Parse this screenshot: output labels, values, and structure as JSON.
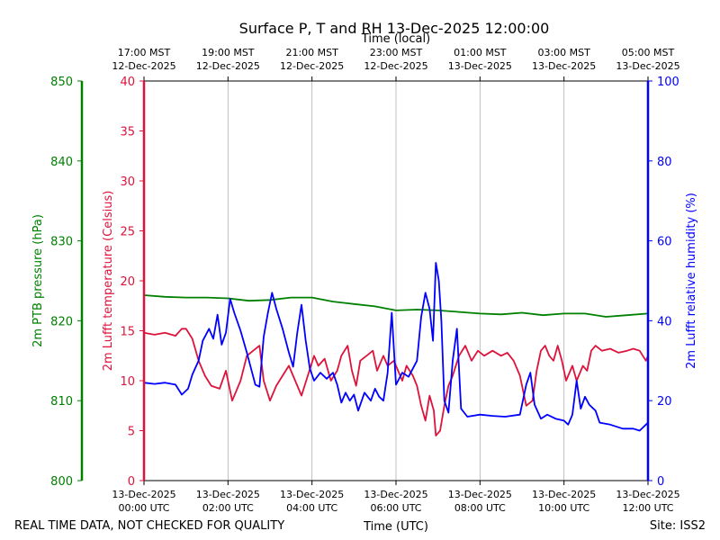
{
  "chart_data": {
    "type": "line",
    "title": "Surface P, T and RH 13-Dec-2025 12:00:00",
    "top_xlabel": "Time (local)",
    "bottom_xlabel": "Time (UTC)",
    "footer_left": "REAL TIME DATA, NOT CHECKED FOR QUALITY",
    "footer_right": "Site: ISS2",
    "x_unit": "hours since 13-Dec-2025 00:00 UTC",
    "xlim": [
      0,
      12
    ],
    "bottom_ticks": [
      {
        "x": 0,
        "line1": "13-Dec-2025",
        "line2": "00:00 UTC"
      },
      {
        "x": 2,
        "line1": "13-Dec-2025",
        "line2": "02:00 UTC"
      },
      {
        "x": 4,
        "line1": "13-Dec-2025",
        "line2": "04:00 UTC"
      },
      {
        "x": 6,
        "line1": "13-Dec-2025",
        "line2": "06:00 UTC"
      },
      {
        "x": 8,
        "line1": "13-Dec-2025",
        "line2": "08:00 UTC"
      },
      {
        "x": 10,
        "line1": "13-Dec-2025",
        "line2": "10:00 UTC"
      },
      {
        "x": 12,
        "line1": "13-Dec-2025",
        "line2": "12:00 UTC"
      }
    ],
    "top_ticks": [
      {
        "x": 0,
        "line1": "17:00 MST",
        "line2": "12-Dec-2025"
      },
      {
        "x": 2,
        "line1": "19:00 MST",
        "line2": "12-Dec-2025"
      },
      {
        "x": 4,
        "line1": "21:00 MST",
        "line2": "12-Dec-2025"
      },
      {
        "x": 6,
        "line1": "23:00 MST",
        "line2": "12-Dec-2025"
      },
      {
        "x": 8,
        "line1": "01:00 MST",
        "line2": "13-Dec-2025"
      },
      {
        "x": 10,
        "line1": "03:00 MST",
        "line2": "13-Dec-2025"
      },
      {
        "x": 12,
        "line1": "05:00 MST",
        "line2": "13-Dec-2025"
      }
    ],
    "grid_vertical": true,
    "axes": {
      "pressure": {
        "label": "2m PTB pressure (hPa)",
        "color": "#008000",
        "ylim": [
          800,
          850
        ],
        "ticks": [
          800,
          810,
          820,
          830,
          840,
          850
        ]
      },
      "temperature": {
        "label": "2m Lufft temperature (Celsius)",
        "color": "#dc143c",
        "ylim": [
          0,
          40
        ],
        "ticks": [
          0,
          5,
          10,
          15,
          20,
          25,
          30,
          35,
          40
        ]
      },
      "humidity": {
        "label": "2m Lufft relative humidity (%)",
        "color": "#0000ff",
        "ylim": [
          0,
          100
        ],
        "ticks": [
          0,
          20,
          40,
          60,
          80,
          100
        ]
      }
    },
    "series": [
      {
        "key": "pressure",
        "color": "#008000",
        "points": [
          [
            0,
            823.2
          ],
          [
            0.5,
            823.0
          ],
          [
            1,
            822.9
          ],
          [
            1.5,
            822.9
          ],
          [
            2,
            822.8
          ],
          [
            2.5,
            822.5
          ],
          [
            3,
            822.6
          ],
          [
            3.5,
            822.9
          ],
          [
            4,
            822.9
          ],
          [
            4.5,
            822.4
          ],
          [
            5,
            822.1
          ],
          [
            5.5,
            821.8
          ],
          [
            6,
            821.3
          ],
          [
            6.5,
            821.4
          ],
          [
            7,
            821.3
          ],
          [
            7.5,
            821.1
          ],
          [
            8,
            820.9
          ],
          [
            8.5,
            820.8
          ],
          [
            9,
            821.0
          ],
          [
            9.5,
            820.7
          ],
          [
            10,
            820.9
          ],
          [
            10.5,
            820.9
          ],
          [
            11,
            820.5
          ],
          [
            11.5,
            820.7
          ],
          [
            12,
            820.9
          ]
        ]
      },
      {
        "key": "temperature",
        "color": "#dc143c",
        "points": [
          [
            0,
            14.8
          ],
          [
            0.25,
            14.6
          ],
          [
            0.5,
            14.8
          ],
          [
            0.75,
            14.5
          ],
          [
            0.9,
            15.2
          ],
          [
            1.0,
            15.2
          ],
          [
            1.15,
            14.2
          ],
          [
            1.3,
            12.0
          ],
          [
            1.45,
            10.5
          ],
          [
            1.6,
            9.5
          ],
          [
            1.8,
            9.2
          ],
          [
            1.95,
            11.0
          ],
          [
            2.1,
            8.0
          ],
          [
            2.3,
            10.0
          ],
          [
            2.45,
            12.5
          ],
          [
            2.6,
            13.0
          ],
          [
            2.75,
            13.5
          ],
          [
            2.85,
            10.0
          ],
          [
            3.0,
            8.0
          ],
          [
            3.15,
            9.5
          ],
          [
            3.3,
            10.5
          ],
          [
            3.45,
            11.5
          ],
          [
            3.6,
            10.0
          ],
          [
            3.75,
            8.5
          ],
          [
            3.9,
            10.5
          ],
          [
            4.05,
            12.5
          ],
          [
            4.15,
            11.5
          ],
          [
            4.3,
            12.2
          ],
          [
            4.45,
            10.0
          ],
          [
            4.6,
            11.0
          ],
          [
            4.7,
            12.5
          ],
          [
            4.85,
            13.5
          ],
          [
            4.95,
            11.0
          ],
          [
            5.05,
            9.5
          ],
          [
            5.15,
            12.0
          ],
          [
            5.3,
            12.5
          ],
          [
            5.45,
            13.0
          ],
          [
            5.55,
            11.0
          ],
          [
            5.7,
            12.5
          ],
          [
            5.8,
            11.5
          ],
          [
            5.95,
            12.0
          ],
          [
            6.05,
            11.0
          ],
          [
            6.15,
            10.0
          ],
          [
            6.25,
            11.5
          ],
          [
            6.4,
            10.5
          ],
          [
            6.5,
            9.5
          ],
          [
            6.6,
            7.5
          ],
          [
            6.7,
            6.0
          ],
          [
            6.8,
            8.5
          ],
          [
            6.9,
            7.0
          ],
          [
            6.95,
            4.5
          ],
          [
            7.05,
            5.0
          ],
          [
            7.15,
            7.5
          ],
          [
            7.25,
            9.5
          ],
          [
            7.35,
            10.5
          ],
          [
            7.5,
            12.5
          ],
          [
            7.65,
            13.5
          ],
          [
            7.8,
            12.0
          ],
          [
            7.95,
            13.0
          ],
          [
            8.1,
            12.5
          ],
          [
            8.3,
            13.0
          ],
          [
            8.5,
            12.5
          ],
          [
            8.65,
            12.8
          ],
          [
            8.8,
            12.0
          ],
          [
            8.95,
            10.5
          ],
          [
            9.1,
            7.5
          ],
          [
            9.25,
            8.0
          ],
          [
            9.35,
            11.0
          ],
          [
            9.45,
            13.0
          ],
          [
            9.55,
            13.5
          ],
          [
            9.65,
            12.5
          ],
          [
            9.75,
            12.0
          ],
          [
            9.85,
            13.5
          ],
          [
            9.95,
            12.0
          ],
          [
            10.05,
            10.0
          ],
          [
            10.2,
            11.5
          ],
          [
            10.3,
            10.0
          ],
          [
            10.45,
            11.5
          ],
          [
            10.55,
            11.0
          ],
          [
            10.65,
            13.0
          ],
          [
            10.75,
            13.5
          ],
          [
            10.9,
            13.0
          ],
          [
            11.1,
            13.2
          ],
          [
            11.3,
            12.8
          ],
          [
            11.5,
            13.0
          ],
          [
            11.65,
            13.2
          ],
          [
            11.8,
            13.0
          ],
          [
            11.95,
            12.0
          ],
          [
            12.0,
            12.5
          ]
        ]
      },
      {
        "key": "humidity",
        "color": "#0000ff",
        "points": [
          [
            0,
            24.5
          ],
          [
            0.25,
            24.2
          ],
          [
            0.5,
            24.5
          ],
          [
            0.75,
            24.0
          ],
          [
            0.9,
            21.5
          ],
          [
            1.05,
            23.0
          ],
          [
            1.15,
            26.5
          ],
          [
            1.3,
            30.0
          ],
          [
            1.4,
            35.0
          ],
          [
            1.55,
            38.0
          ],
          [
            1.65,
            35.5
          ],
          [
            1.75,
            41.5
          ],
          [
            1.85,
            34.0
          ],
          [
            1.95,
            37.0
          ],
          [
            2.05,
            45.5
          ],
          [
            2.15,
            42.0
          ],
          [
            2.3,
            37.5
          ],
          [
            2.45,
            32.0
          ],
          [
            2.55,
            28.0
          ],
          [
            2.65,
            24.0
          ],
          [
            2.75,
            23.5
          ],
          [
            2.85,
            36.0
          ],
          [
            2.95,
            42.0
          ],
          [
            3.05,
            47.0
          ],
          [
            3.15,
            43.0
          ],
          [
            3.3,
            38.0
          ],
          [
            3.45,
            32.0
          ],
          [
            3.55,
            28.5
          ],
          [
            3.65,
            37.0
          ],
          [
            3.75,
            44.0
          ],
          [
            3.85,
            35.0
          ],
          [
            3.95,
            28.0
          ],
          [
            4.05,
            25.0
          ],
          [
            4.2,
            27.0
          ],
          [
            4.35,
            25.5
          ],
          [
            4.5,
            27.0
          ],
          [
            4.6,
            24.0
          ],
          [
            4.7,
            19.5
          ],
          [
            4.8,
            22.0
          ],
          [
            4.9,
            20.0
          ],
          [
            5.0,
            21.5
          ],
          [
            5.1,
            17.5
          ],
          [
            5.25,
            22.0
          ],
          [
            5.4,
            20.0
          ],
          [
            5.5,
            23.0
          ],
          [
            5.6,
            21.0
          ],
          [
            5.7,
            20.0
          ],
          [
            5.8,
            27.0
          ],
          [
            5.9,
            42.0
          ],
          [
            6.0,
            24.0
          ],
          [
            6.15,
            27.0
          ],
          [
            6.3,
            26.0
          ],
          [
            6.5,
            30.0
          ],
          [
            6.6,
            41.0
          ],
          [
            6.7,
            47.0
          ],
          [
            6.8,
            43.0
          ],
          [
            6.88,
            35.0
          ],
          [
            6.95,
            54.5
          ],
          [
            7.02,
            50.0
          ],
          [
            7.08,
            40.0
          ],
          [
            7.15,
            20.0
          ],
          [
            7.25,
            17.0
          ],
          [
            7.35,
            30.0
          ],
          [
            7.45,
            38.0
          ],
          [
            7.55,
            18.0
          ],
          [
            7.7,
            16.0
          ],
          [
            8.0,
            16.5
          ],
          [
            8.3,
            16.2
          ],
          [
            8.6,
            16.0
          ],
          [
            8.95,
            16.5
          ],
          [
            9.1,
            24.0
          ],
          [
            9.2,
            27.0
          ],
          [
            9.3,
            19.0
          ],
          [
            9.45,
            15.5
          ],
          [
            9.6,
            16.5
          ],
          [
            9.8,
            15.5
          ],
          [
            10.0,
            15.0
          ],
          [
            10.1,
            14.0
          ],
          [
            10.2,
            16.5
          ],
          [
            10.3,
            25.0
          ],
          [
            10.4,
            18.0
          ],
          [
            10.5,
            21.0
          ],
          [
            10.6,
            19.0
          ],
          [
            10.75,
            17.5
          ],
          [
            10.85,
            14.5
          ],
          [
            11.1,
            14.0
          ],
          [
            11.4,
            13.0
          ],
          [
            11.65,
            13.0
          ],
          [
            11.8,
            12.5
          ],
          [
            11.95,
            14.0
          ],
          [
            12.0,
            14.5
          ]
        ]
      }
    ]
  }
}
